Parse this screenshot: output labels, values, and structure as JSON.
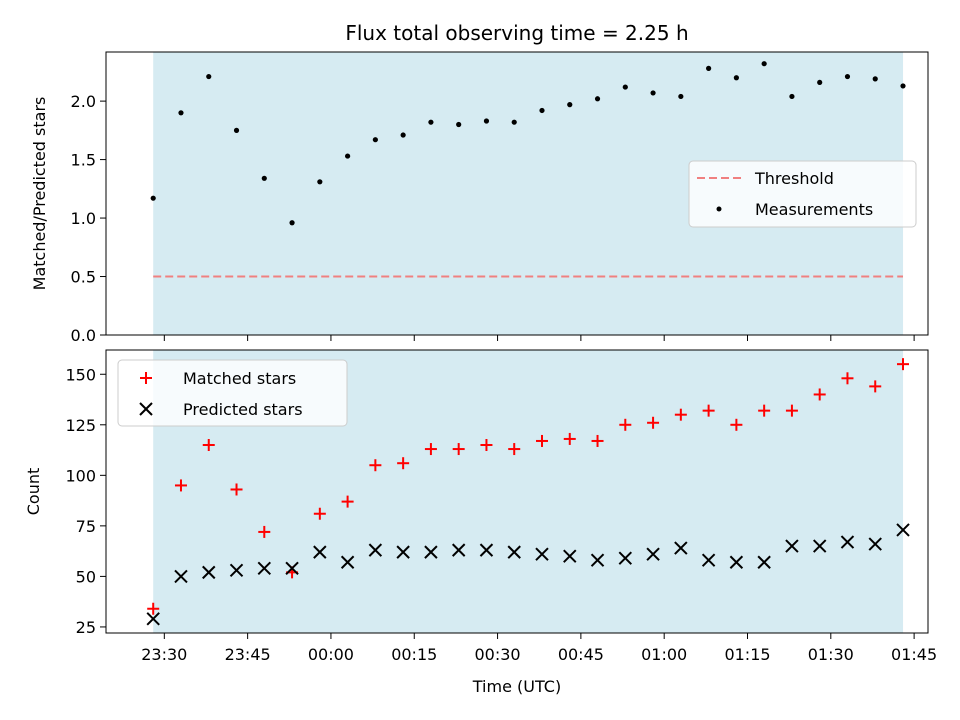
{
  "title": "Flux total observing time = 2.25 h",
  "colors": {
    "span": "#add8e6",
    "threshold": "#f08080",
    "measurements": "#000000",
    "matched": "#ff0000",
    "predicted": "#000000"
  },
  "chart_data": [
    {
      "type": "scatter",
      "ylabel": "Matched/Predicted stars",
      "ylim": [
        0,
        2.42
      ],
      "yticks": [
        "0.0",
        "0.5",
        "1.0",
        "1.5",
        "2.0"
      ],
      "legend_position": "center-right",
      "legend": [
        "Threshold",
        "Measurements"
      ],
      "threshold": 0.5,
      "series": [
        {
          "name": "Measurements",
          "x": [
            "23:28",
            "23:33",
            "23:38",
            "23:43",
            "23:48",
            "23:53",
            "23:58",
            "00:03",
            "00:08",
            "00:13",
            "00:18",
            "00:23",
            "00:28",
            "00:33",
            "00:38",
            "00:43",
            "00:48",
            "00:53",
            "00:58",
            "01:03",
            "01:08",
            "01:13",
            "01:18",
            "01:23",
            "01:28",
            "01:33",
            "01:38",
            "01:43"
          ],
          "y": [
            1.17,
            1.9,
            2.21,
            1.75,
            1.34,
            0.96,
            1.31,
            1.53,
            1.67,
            1.71,
            1.82,
            1.8,
            1.83,
            1.82,
            1.92,
            1.97,
            2.02,
            2.12,
            2.07,
            2.04,
            2.28,
            2.2,
            2.32,
            2.04,
            2.16,
            2.21,
            2.19,
            2.13
          ]
        }
      ]
    },
    {
      "type": "scatter",
      "xlabel": "Time (UTC)",
      "ylabel": "Count",
      "ylim": [
        22,
        162
      ],
      "yticks": [
        "25",
        "50",
        "75",
        "100",
        "125",
        "150"
      ],
      "xticks": [
        "23:30",
        "23:45",
        "00:00",
        "00:15",
        "00:30",
        "00:45",
        "01:00",
        "01:15",
        "01:30",
        "01:45"
      ],
      "legend_position": "top-left",
      "series": [
        {
          "name": "Matched stars",
          "x": [
            "23:28",
            "23:33",
            "23:38",
            "23:43",
            "23:48",
            "23:53",
            "23:58",
            "00:03",
            "00:08",
            "00:13",
            "00:18",
            "00:23",
            "00:28",
            "00:33",
            "00:38",
            "00:43",
            "00:48",
            "00:53",
            "00:58",
            "01:03",
            "01:08",
            "01:13",
            "01:18",
            "01:23",
            "01:28",
            "01:33",
            "01:38",
            "01:43"
          ],
          "y": [
            34,
            95,
            115,
            93,
            72,
            52,
            81,
            87,
            105,
            106,
            113,
            113,
            115,
            113,
            117,
            118,
            117,
            125,
            126,
            130,
            132,
            125,
            132,
            132,
            140,
            148,
            144,
            155
          ]
        },
        {
          "name": "Predicted stars",
          "x": [
            "23:28",
            "23:33",
            "23:38",
            "23:43",
            "23:48",
            "23:53",
            "23:58",
            "00:03",
            "00:08",
            "00:13",
            "00:18",
            "00:23",
            "00:28",
            "00:33",
            "00:38",
            "00:43",
            "00:48",
            "00:53",
            "00:58",
            "01:03",
            "01:08",
            "01:13",
            "01:18",
            "01:23",
            "01:28",
            "01:33",
            "01:38",
            "01:43"
          ],
          "y": [
            29,
            50,
            52,
            53,
            54,
            54,
            62,
            57,
            63,
            62,
            62,
            63,
            63,
            62,
            61,
            60,
            58,
            59,
            61,
            64,
            58,
            57,
            57,
            65,
            65,
            67,
            66,
            73
          ]
        }
      ]
    }
  ]
}
